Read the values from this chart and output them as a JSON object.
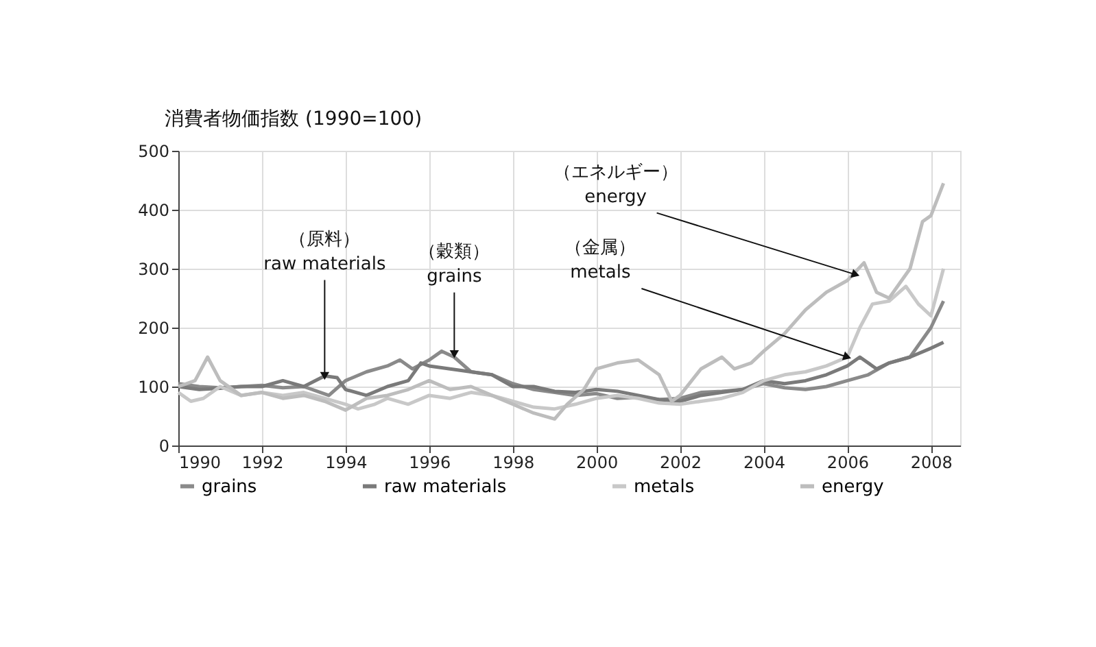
{
  "chart_data": {
    "type": "line",
    "title": "消費者物価指数 (1990=100)",
    "xlim": [
      1990,
      2008.7
    ],
    "xticks": [
      1990,
      1992,
      1994,
      1996,
      1998,
      2000,
      2002,
      2004,
      2006,
      2008
    ],
    "ylim": [
      0,
      500
    ],
    "yticks": [
      0,
      100,
      200,
      300,
      400,
      500
    ],
    "grid": true,
    "legend": "bottom",
    "marker": "none",
    "line_style": "solid",
    "series": [
      {
        "name": "grains",
        "color": "#8a8a8a",
        "x": [
          1990,
          1990.5,
          1991,
          1991.5,
          1992,
          1992.5,
          1993,
          1993.6,
          1994,
          1994.5,
          1995,
          1995.3,
          1995.6,
          1996,
          1996.3,
          1996.6,
          1997,
          1997.5,
          1998,
          1998.5,
          1999,
          1999.5,
          2000,
          2000.5,
          2001,
          2001.5,
          2002,
          2002.5,
          2003,
          2003.5,
          2004,
          2004.5,
          2005,
          2005.5,
          2006,
          2006.5,
          2007,
          2007.5,
          2008,
          2008.3
        ],
        "values": [
          105,
          100,
          98,
          100,
          102,
          98,
          100,
          85,
          110,
          125,
          135,
          145,
          130,
          145,
          160,
          150,
          125,
          120,
          105,
          95,
          90,
          85,
          88,
          80,
          82,
          78,
          80,
          90,
          92,
          95,
          105,
          98,
          95,
          100,
          110,
          120,
          140,
          150,
          200,
          245
        ]
      },
      {
        "name": "raw materials",
        "color": "#7a7a7a",
        "x": [
          1990,
          1990.5,
          1991,
          1991.5,
          1992,
          1992.5,
          1993,
          1993.5,
          1993.8,
          1994,
          1994.5,
          1995,
          1995.5,
          1995.8,
          1996,
          1996.5,
          1997,
          1997.5,
          1998,
          1998.5,
          1999,
          1999.5,
          2000,
          2000.5,
          2001,
          2001.5,
          2002,
          2002.5,
          2003,
          2003.5,
          2004,
          2004.5,
          2005,
          2005.5,
          2006,
          2006.3,
          2006.7,
          2007,
          2007.5,
          2008,
          2008.3
        ],
        "values": [
          100,
          95,
          97,
          100,
          100,
          110,
          100,
          118,
          115,
          95,
          85,
          100,
          110,
          140,
          135,
          130,
          125,
          120,
          100,
          100,
          92,
          90,
          95,
          92,
          85,
          78,
          75,
          85,
          90,
          95,
          110,
          105,
          110,
          120,
          135,
          150,
          130,
          140,
          150,
          165,
          175
        ]
      },
      {
        "name": "metals",
        "color": "#c8c8c8",
        "x": [
          1990,
          1990.3,
          1990.6,
          1991,
          1991.5,
          1992,
          1992.5,
          1993,
          1993.5,
          1994,
          1994.3,
          1994.7,
          1995,
          1995.5,
          1996,
          1996.5,
          1997,
          1997.5,
          1998,
          1998.5,
          1999,
          1999.5,
          2000,
          2000.5,
          2001,
          2001.5,
          2002,
          2002.5,
          2003,
          2003.5,
          2004,
          2004.5,
          2005,
          2005.5,
          2006,
          2006.3,
          2006.6,
          2007,
          2007.4,
          2007.7,
          2008,
          2008.3
        ],
        "values": [
          90,
          75,
          80,
          100,
          85,
          90,
          85,
          90,
          80,
          70,
          62,
          70,
          80,
          70,
          85,
          80,
          90,
          85,
          75,
          65,
          62,
          70,
          80,
          85,
          80,
          72,
          70,
          75,
          80,
          90,
          110,
          120,
          125,
          135,
          150,
          200,
          240,
          245,
          270,
          240,
          220,
          300
        ]
      },
      {
        "name": "energy",
        "color": "#bdbdbd",
        "x": [
          1990,
          1990.4,
          1990.7,
          1991,
          1991.5,
          1992,
          1992.5,
          1993,
          1993.5,
          1994,
          1994.5,
          1995,
          1995.5,
          1996,
          1996.5,
          1997,
          1997.5,
          1998,
          1998.5,
          1999,
          1999.3,
          1999.7,
          2000,
          2000.5,
          2001,
          2001.5,
          2001.8,
          2002,
          2002.5,
          2003,
          2003.3,
          2003.7,
          2004,
          2004.5,
          2005,
          2005.5,
          2006,
          2006.4,
          2006.7,
          2007,
          2007.5,
          2007.8,
          2008,
          2008.3
        ],
        "values": [
          100,
          110,
          150,
          110,
          85,
          90,
          80,
          85,
          75,
          60,
          80,
          85,
          95,
          110,
          95,
          100,
          85,
          70,
          55,
          45,
          70,
          95,
          130,
          140,
          145,
          120,
          75,
          85,
          130,
          150,
          130,
          140,
          160,
          190,
          230,
          260,
          280,
          310,
          260,
          250,
          300,
          380,
          390,
          445
        ]
      }
    ],
    "annotations": [
      {
        "text": "（原料）\nraw materials",
        "x": 1993.5,
        "y": 118
      },
      {
        "text": "（穀類）\ngrains",
        "x": 1996.6,
        "y": 155
      },
      {
        "text": "（エネルギー）\nenergy",
        "x": 2006.2,
        "y": 290
      },
      {
        "text": "（金属）\nmetals",
        "x": 2006,
        "y": 150
      }
    ]
  }
}
